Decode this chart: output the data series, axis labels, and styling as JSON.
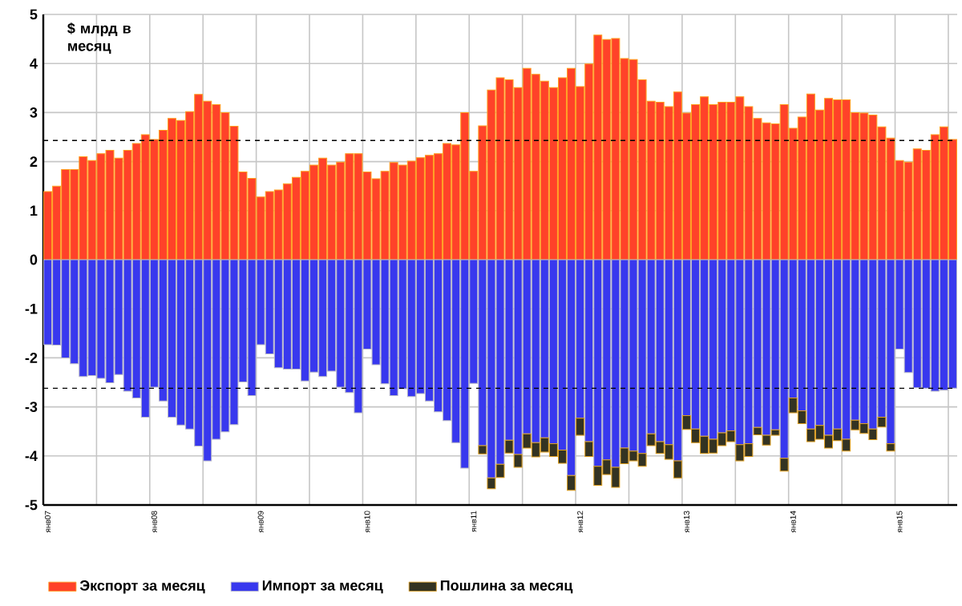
{
  "chart_data": {
    "type": "bar",
    "stacked": true,
    "ylabel": "$ млрд в месяц",
    "categories": [
      "янв07",
      null,
      null,
      null,
      null,
      null,
      null,
      null,
      null,
      null,
      null,
      null,
      "янв08",
      null,
      null,
      null,
      null,
      null,
      null,
      null,
      null,
      null,
      null,
      null,
      "янв09",
      null,
      null,
      null,
      null,
      null,
      null,
      null,
      null,
      null,
      null,
      null,
      "янв10",
      null,
      null,
      null,
      null,
      null,
      null,
      null,
      null,
      null,
      null,
      null,
      "янв11",
      null,
      null,
      null,
      null,
      null,
      null,
      null,
      null,
      null,
      null,
      null,
      "янв12",
      null,
      null,
      null,
      null,
      null,
      null,
      null,
      null,
      null,
      null,
      null,
      "янв13",
      null,
      null,
      null,
      null,
      null,
      null,
      null,
      null,
      null,
      null,
      null,
      "янв14",
      null,
      null,
      null,
      null,
      null,
      null,
      null,
      null,
      null,
      null,
      null,
      "янв15",
      null,
      null,
      null,
      null,
      null,
      null
    ],
    "series": [
      {
        "name": "Экспорт за месяц",
        "color": "#ff4229",
        "values": [
          1.39,
          1.5,
          1.84,
          1.84,
          2.1,
          2.02,
          2.16,
          2.23,
          2.07,
          2.23,
          2.37,
          2.55,
          2.45,
          2.64,
          2.88,
          2.84,
          3.02,
          3.37,
          3.23,
          3.16,
          3.0,
          2.72,
          1.79,
          1.66,
          1.28,
          1.39,
          1.42,
          1.55,
          1.68,
          1.8,
          1.93,
          2.07,
          1.93,
          1.99,
          2.16,
          2.16,
          1.79,
          1.65,
          1.8,
          1.98,
          1.93,
          2.01,
          2.08,
          2.13,
          2.16,
          2.37,
          2.34,
          3.0,
          1.8,
          2.73,
          3.46,
          3.71,
          3.67,
          3.51,
          3.9,
          3.78,
          3.64,
          3.51,
          3.71,
          3.9,
          3.53,
          3.99,
          4.58,
          4.49,
          4.51,
          4.1,
          4.08,
          3.67,
          3.23,
          3.21,
          3.12,
          3.42,
          2.99,
          3.16,
          3.32,
          3.16,
          3.21,
          3.21,
          3.32,
          3.12,
          2.88,
          2.79,
          2.77,
          3.16,
          2.68,
          2.91,
          3.38,
          3.05,
          3.29,
          3.26,
          3.26,
          3.0,
          2.99,
          2.95,
          2.71,
          2.48,
          2.02,
          1.99,
          2.26,
          2.23,
          2.55,
          2.71,
          2.45
        ]
      },
      {
        "name": "Импорт за месяц",
        "color": "#3838ee",
        "values": [
          -1.73,
          -1.74,
          -2.0,
          -2.12,
          -2.38,
          -2.36,
          -2.42,
          -2.51,
          -2.34,
          -2.68,
          -2.82,
          -3.21,
          -2.6,
          -2.88,
          -3.21,
          -3.37,
          -3.45,
          -3.8,
          -4.1,
          -3.66,
          -3.51,
          -3.36,
          -2.49,
          -2.77,
          -1.73,
          -1.92,
          -2.2,
          -2.23,
          -2.23,
          -2.47,
          -2.29,
          -2.38,
          -2.27,
          -2.6,
          -2.71,
          -3.12,
          -1.82,
          -2.14,
          -2.53,
          -2.77,
          -2.63,
          -2.79,
          -2.73,
          -2.88,
          -3.1,
          -3.28,
          -3.73,
          -4.25,
          -2.52,
          -3.79,
          -4.45,
          -4.17,
          -3.68,
          -3.97,
          -3.55,
          -3.73,
          -3.63,
          -3.75,
          -3.88,
          -4.4,
          -3.23,
          -3.71,
          -4.21,
          -4.08,
          -4.23,
          -3.84,
          -3.9,
          -3.95,
          -3.55,
          -3.71,
          -3.77,
          -4.1,
          -3.18,
          -3.45,
          -3.6,
          -3.66,
          -3.53,
          -3.49,
          -3.77,
          -3.75,
          -3.42,
          -3.58,
          -3.47,
          -4.05,
          -2.82,
          -3.08,
          -3.45,
          -3.38,
          -3.58,
          -3.45,
          -3.66,
          -3.27,
          -3.34,
          -3.45,
          -3.21,
          -3.75,
          -1.82,
          -2.3,
          -2.61,
          -2.62,
          -2.68,
          -2.66,
          -2.62
        ]
      },
      {
        "name": "Пошлина за месяц",
        "color": "#333322",
        "values": [
          null,
          null,
          null,
          null,
          null,
          null,
          null,
          null,
          null,
          null,
          null,
          null,
          null,
          null,
          null,
          null,
          null,
          null,
          null,
          null,
          null,
          null,
          null,
          null,
          null,
          null,
          null,
          null,
          null,
          null,
          null,
          null,
          null,
          null,
          null,
          null,
          null,
          null,
          null,
          null,
          null,
          null,
          null,
          null,
          null,
          null,
          null,
          null,
          null,
          -0.17,
          -0.22,
          -0.27,
          -0.26,
          -0.26,
          -0.29,
          -0.29,
          -0.29,
          -0.26,
          -0.27,
          -0.3,
          -0.35,
          -0.3,
          -0.39,
          -0.3,
          -0.41,
          -0.32,
          -0.2,
          -0.26,
          -0.24,
          -0.24,
          -0.3,
          -0.35,
          -0.28,
          -0.28,
          -0.35,
          -0.28,
          -0.26,
          -0.22,
          -0.33,
          -0.26,
          -0.15,
          -0.2,
          -0.11,
          -0.26,
          -0.3,
          -0.26,
          -0.26,
          -0.28,
          -0.26,
          -0.24,
          -0.24,
          -0.2,
          -0.2,
          -0.22,
          -0.2,
          -0.15,
          null,
          null,
          null,
          null,
          null,
          null,
          null
        ]
      }
    ],
    "ylim": [
      -5,
      5
    ],
    "yticks": [
      -5,
      -4,
      -3,
      -2,
      -1,
      0,
      1,
      2,
      3,
      4,
      5
    ],
    "grid": true,
    "legend": "bottom",
    "ref_lines": [
      {
        "axis": "y",
        "value": 2.43,
        "color": "#000000",
        "line_style": "dashed"
      },
      {
        "axis": "y",
        "value": -2.62,
        "color": "#000000",
        "line_style": "dashed"
      }
    ]
  }
}
